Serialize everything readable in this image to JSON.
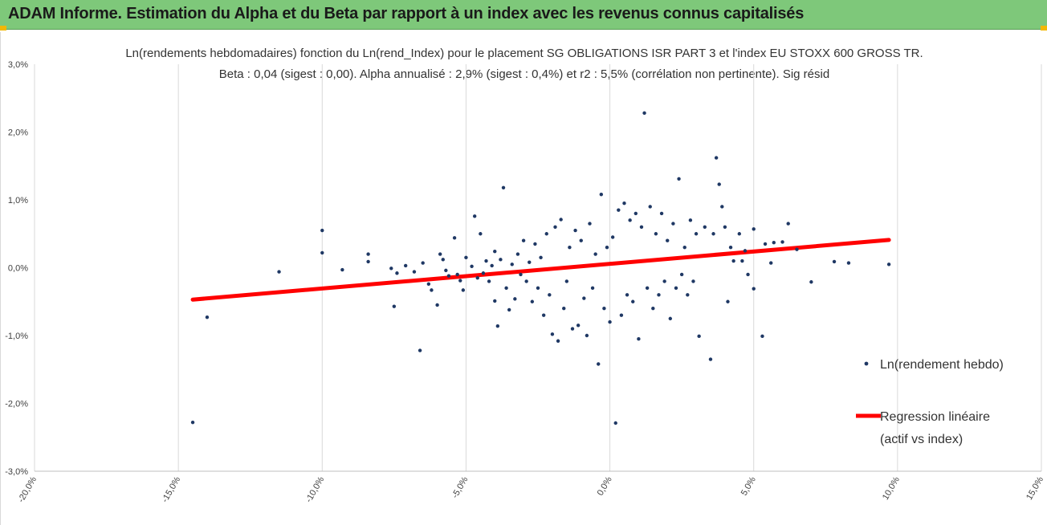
{
  "header": {
    "title": "ADAM Informe. Estimation du Alpha et du Beta par rapport à un index avec les revenus connus capitalisés"
  },
  "colors": {
    "banner": "#7ec87a",
    "points": "#1f3864",
    "regression": "#ff0000",
    "grid": "#d9d9d9"
  },
  "chart_data": {
    "type": "scatter",
    "title": "Ln(rendements hebdomadaires) fonction du Ln(rend_Index) pour le placement SG OBLIGATIONS ISR PART 3 et l'index EU STOXX 600 GROSS TR.",
    "subtitle": "Beta : 0,04 (sigest : 0,00). Alpha annualisé : 2,9% (sigest : 0,4%) et r2 : 5,5% (corrélation non pertinente). Sig résid",
    "xlim": [
      -0.2,
      0.15
    ],
    "ylim": [
      -0.03,
      0.03
    ],
    "x_ticks": [
      {
        "value": -0.2,
        "label": "-20,0%"
      },
      {
        "value": -0.15,
        "label": "-15,0%"
      },
      {
        "value": -0.1,
        "label": "-10,0%"
      },
      {
        "value": -0.05,
        "label": "-5,0%"
      },
      {
        "value": 0.0,
        "label": "0,0%"
      },
      {
        "value": 0.05,
        "label": "5,0%"
      },
      {
        "value": 0.1,
        "label": "10,0%"
      },
      {
        "value": 0.15,
        "label": "15,0%"
      }
    ],
    "y_ticks": [
      {
        "value": 0.03,
        "label": "3,0%"
      },
      {
        "value": 0.02,
        "label": "2,0%"
      },
      {
        "value": 0.01,
        "label": "1,0%"
      },
      {
        "value": 0.0,
        "label": "0,0%"
      },
      {
        "value": -0.01,
        "label": "-1,0%"
      },
      {
        "value": -0.02,
        "label": "-2,0%"
      },
      {
        "value": -0.03,
        "label": "-3,0%"
      }
    ],
    "grid": "vertical",
    "legend_position": "right",
    "series": [
      {
        "name": "Ln(rendement hebdo)",
        "type": "scatter",
        "points": [
          [
            -0.145,
            -0.0228
          ],
          [
            -0.14,
            -0.0073
          ],
          [
            -0.115,
            -0.0006
          ],
          [
            -0.1,
            0.0055
          ],
          [
            -0.1,
            0.0022
          ],
          [
            -0.093,
            -0.0003
          ],
          [
            -0.084,
            0.0009
          ],
          [
            -0.084,
            0.002
          ],
          [
            -0.076,
            -0.0001
          ],
          [
            -0.075,
            -0.0057
          ],
          [
            -0.074,
            -0.0008
          ],
          [
            -0.071,
            0.0003
          ],
          [
            -0.068,
            -0.0006
          ],
          [
            -0.066,
            -0.0122
          ],
          [
            -0.065,
            0.0007
          ],
          [
            -0.063,
            -0.0024
          ],
          [
            -0.062,
            -0.0033
          ],
          [
            -0.06,
            -0.0055
          ],
          [
            -0.059,
            0.002
          ],
          [
            -0.058,
            0.0012
          ],
          [
            -0.057,
            -0.0004
          ],
          [
            -0.056,
            -0.0012
          ],
          [
            -0.054,
            0.0044
          ],
          [
            -0.053,
            -0.001
          ],
          [
            -0.052,
            -0.0019
          ],
          [
            -0.051,
            -0.0033
          ],
          [
            -0.05,
            0.0015
          ],
          [
            -0.048,
            0.0002
          ],
          [
            -0.047,
            0.0076
          ],
          [
            -0.046,
            -0.0015
          ],
          [
            -0.045,
            0.005
          ],
          [
            -0.044,
            -0.0008
          ],
          [
            -0.043,
            0.001
          ],
          [
            -0.042,
            -0.002
          ],
          [
            -0.041,
            0.0003
          ],
          [
            -0.04,
            -0.0049
          ],
          [
            -0.04,
            0.0024
          ],
          [
            -0.039,
            -0.0086
          ],
          [
            -0.038,
            0.0012
          ],
          [
            -0.037,
            0.0118
          ],
          [
            -0.036,
            -0.003
          ],
          [
            -0.035,
            -0.0062
          ],
          [
            -0.034,
            0.0005
          ],
          [
            -0.033,
            -0.0046
          ],
          [
            -0.032,
            0.002
          ],
          [
            -0.031,
            -0.001
          ],
          [
            -0.03,
            0.004
          ],
          [
            -0.029,
            -0.002
          ],
          [
            -0.028,
            0.0008
          ],
          [
            -0.027,
            -0.005
          ],
          [
            -0.026,
            0.0035
          ],
          [
            -0.025,
            -0.003
          ],
          [
            -0.024,
            0.0015
          ],
          [
            -0.023,
            -0.007
          ],
          [
            -0.022,
            0.005
          ],
          [
            -0.021,
            -0.004
          ],
          [
            -0.02,
            -0.0098
          ],
          [
            -0.019,
            0.006
          ],
          [
            -0.018,
            -0.0108
          ],
          [
            -0.017,
            0.0071
          ],
          [
            -0.016,
            -0.006
          ],
          [
            -0.015,
            -0.002
          ],
          [
            -0.014,
            0.003
          ],
          [
            -0.013,
            -0.009
          ],
          [
            -0.012,
            0.0055
          ],
          [
            -0.011,
            -0.0085
          ],
          [
            -0.01,
            0.004
          ],
          [
            -0.009,
            -0.0045
          ],
          [
            -0.008,
            -0.01
          ],
          [
            -0.007,
            0.0065
          ],
          [
            -0.006,
            -0.003
          ],
          [
            -0.005,
            0.002
          ],
          [
            -0.004,
            -0.0142
          ],
          [
            -0.003,
            0.0108
          ],
          [
            -0.002,
            -0.006
          ],
          [
            -0.001,
            0.003
          ],
          [
            0.0,
            -0.008
          ],
          [
            0.001,
            0.0045
          ],
          [
            0.002,
            -0.0229
          ],
          [
            0.003,
            0.0085
          ],
          [
            0.004,
            -0.007
          ],
          [
            0.005,
            0.0095
          ],
          [
            0.006,
            -0.004
          ],
          [
            0.007,
            0.007
          ],
          [
            0.008,
            -0.005
          ],
          [
            0.009,
            0.008
          ],
          [
            0.01,
            -0.0105
          ],
          [
            0.011,
            0.006
          ],
          [
            0.012,
            0.0228
          ],
          [
            0.013,
            -0.003
          ],
          [
            0.014,
            0.009
          ],
          [
            0.015,
            -0.006
          ],
          [
            0.016,
            0.005
          ],
          [
            0.017,
            -0.004
          ],
          [
            0.018,
            0.008
          ],
          [
            0.019,
            -0.002
          ],
          [
            0.02,
            0.004
          ],
          [
            0.021,
            -0.0075
          ],
          [
            0.022,
            0.0065
          ],
          [
            0.023,
            -0.003
          ],
          [
            0.024,
            0.0131
          ],
          [
            0.025,
            -0.001
          ],
          [
            0.026,
            0.003
          ],
          [
            0.027,
            -0.004
          ],
          [
            0.028,
            0.007
          ],
          [
            0.029,
            -0.002
          ],
          [
            0.03,
            0.005
          ],
          [
            0.031,
            -0.0101
          ],
          [
            0.033,
            0.006
          ],
          [
            0.035,
            -0.0135
          ],
          [
            0.036,
            0.005
          ],
          [
            0.037,
            0.0162
          ],
          [
            0.038,
            0.0123
          ],
          [
            0.039,
            0.009
          ],
          [
            0.04,
            0.006
          ],
          [
            0.041,
            -0.005
          ],
          [
            0.042,
            0.003
          ],
          [
            0.043,
            0.001
          ],
          [
            0.045,
            0.005
          ],
          [
            0.046,
            0.001
          ],
          [
            0.047,
            0.0025
          ],
          [
            0.048,
            -0.001
          ],
          [
            0.05,
            0.0057
          ],
          [
            0.05,
            -0.0031
          ],
          [
            0.053,
            -0.0101
          ],
          [
            0.054,
            0.0035
          ],
          [
            0.056,
            0.0007
          ],
          [
            0.057,
            0.0037
          ],
          [
            0.06,
            0.0038
          ],
          [
            0.062,
            0.0065
          ],
          [
            0.065,
            0.0027
          ],
          [
            0.07,
            -0.0021
          ],
          [
            0.078,
            0.0009
          ],
          [
            0.083,
            0.0007
          ],
          [
            0.097,
            0.0005
          ]
        ]
      },
      {
        "name": "Regression linéaire",
        "legend_label_lines": [
          "Regression linéaire",
          "(actif vs index)"
        ],
        "type": "line",
        "points": [
          [
            -0.145,
            -0.0047
          ],
          [
            0.097,
            0.0041
          ]
        ]
      }
    ]
  }
}
